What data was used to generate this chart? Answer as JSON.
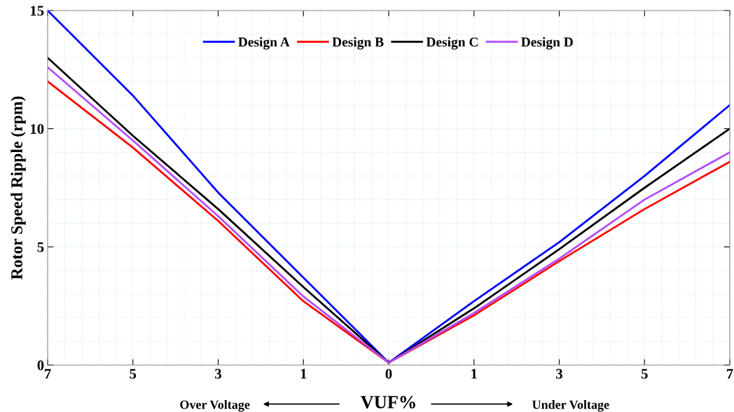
{
  "chart_data": {
    "type": "line",
    "xlabel": "VUF%",
    "ylabel": "Rotor Speed Ripple (rpm)",
    "categories": [
      "7",
      "5",
      "3",
      "1",
      "0",
      "1",
      "3",
      "5",
      "7"
    ],
    "series": [
      {
        "name": "Design A",
        "color": "#0000ff",
        "values": [
          15,
          11.4,
          7.3,
          3.7,
          0.1,
          2.7,
          5.2,
          8.0,
          11.0
        ]
      },
      {
        "name": "Design B",
        "color": "#ff0000",
        "values": [
          12,
          9.2,
          6.1,
          2.7,
          0.1,
          2.1,
          4.4,
          6.6,
          8.6
        ]
      },
      {
        "name": "Design C",
        "color": "#000000",
        "values": [
          13,
          9.7,
          6.6,
          3.3,
          0.1,
          2.4,
          4.9,
          7.5,
          10.0
        ]
      },
      {
        "name": "Design D",
        "color": "#b54cff",
        "values": [
          12.6,
          9.5,
          6.3,
          2.9,
          0.1,
          2.2,
          4.5,
          7.0,
          9.0
        ]
      }
    ],
    "ylim": [
      0,
      15
    ],
    "yticks": [
      0,
      5,
      10,
      15
    ],
    "grid": true,
    "legend": "top",
    "marker": "none",
    "line_style": "solid",
    "annotations": [
      "Over Voltage",
      "Under Voltage"
    ]
  }
}
